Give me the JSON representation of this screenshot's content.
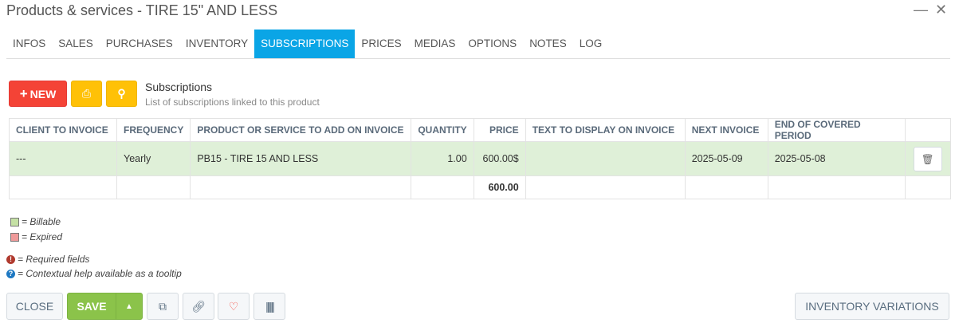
{
  "window": {
    "title": "Products & services - TIRE 15\" AND LESS"
  },
  "tabs": [
    "INFOS",
    "SALES",
    "PURCHASES",
    "INVENTORY",
    "SUBSCRIPTIONS",
    "PRICES",
    "MEDIAS",
    "OPTIONS",
    "NOTES",
    "LOG"
  ],
  "active_tab": "SUBSCRIPTIONS",
  "toolbar": {
    "new_label": "NEW"
  },
  "section": {
    "title": "Subscriptions",
    "description": "List of subscriptions linked to this product"
  },
  "table": {
    "headers": [
      "CLIENT TO INVOICE",
      "FREQUENCY",
      "PRODUCT OR SERVICE TO ADD ON INVOICE",
      "QUANTITY",
      "PRICE",
      "TEXT TO DISPLAY ON INVOICE",
      "NEXT INVOICE",
      "END OF COVERED PERIOD",
      ""
    ],
    "rows": [
      {
        "client": "---",
        "frequency": "Yearly",
        "product": "PB15 - TIRE 15 AND LESS",
        "quantity": "1.00",
        "price": "600.00$",
        "text": "",
        "next_invoice": "2025-05-09",
        "end_period": "2025-05-08"
      }
    ],
    "total": "600.00"
  },
  "legend": {
    "billable": "= Billable",
    "expired": "= Expired",
    "required": "= Required fields",
    "help": "= Contextual help available as a tooltip"
  },
  "colors": {
    "billable": "#c5e1a5",
    "expired": "#ef9a9a",
    "accent": "#0aa5e6"
  },
  "footer": {
    "close": "CLOSE",
    "save": "SAVE",
    "inventory_variations": "INVENTORY VARIATIONS"
  }
}
